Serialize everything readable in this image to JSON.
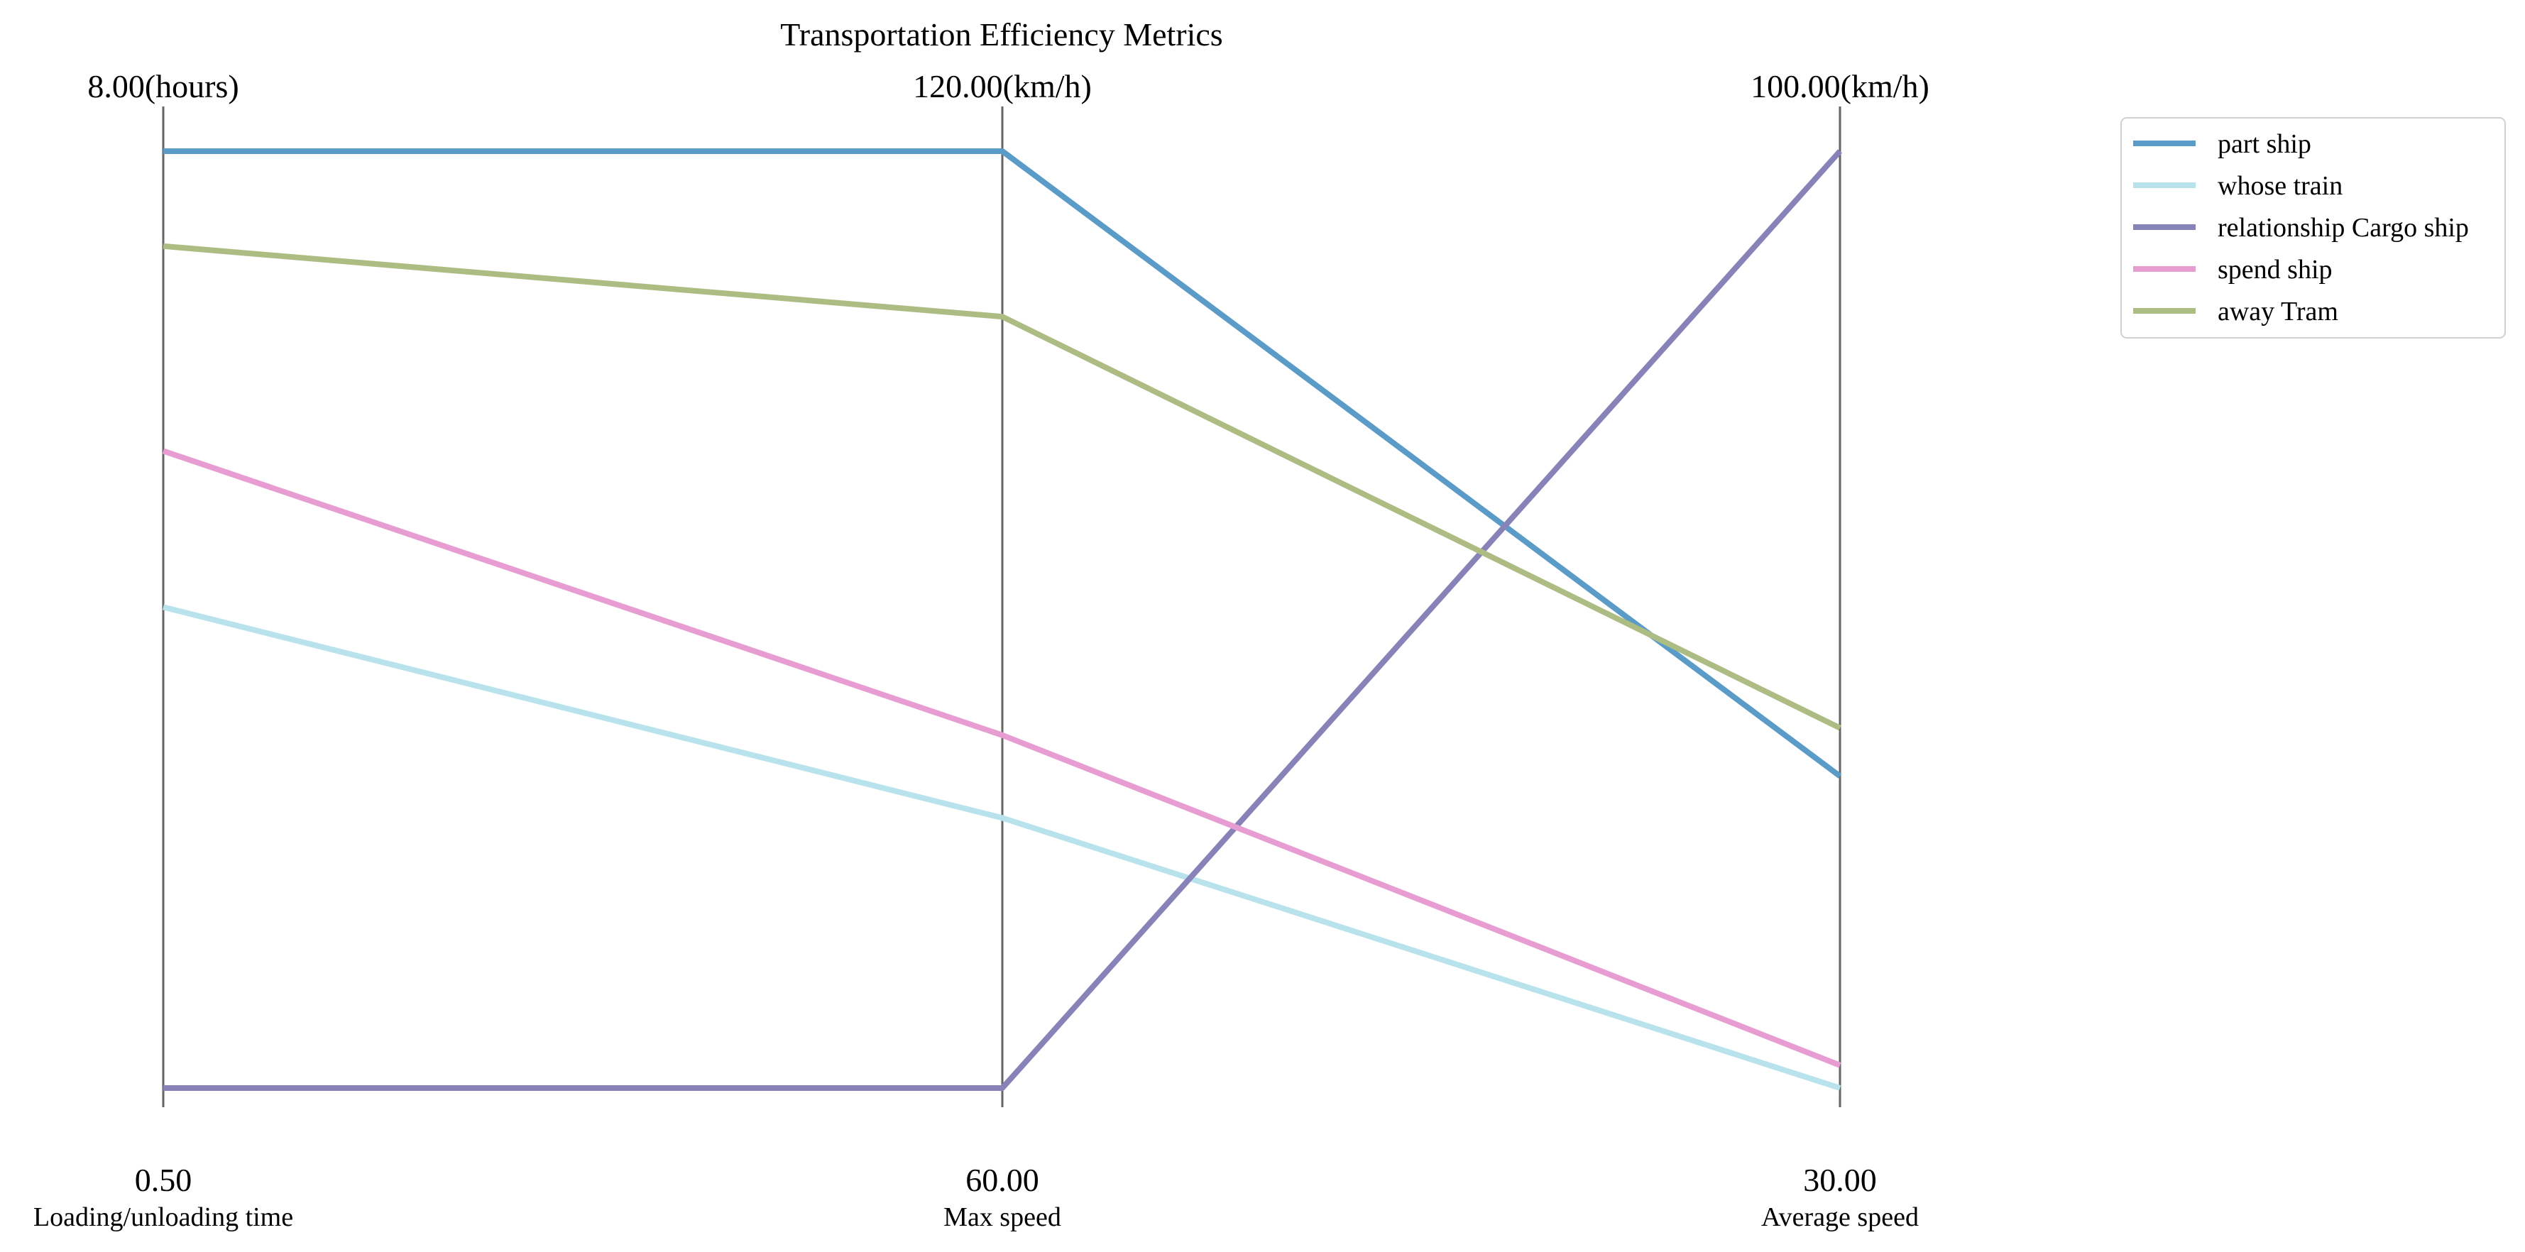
{
  "chart_data": {
    "type": "parallel-coordinates",
    "title": "Transportation Efficiency Metrics",
    "axes": [
      {
        "name": "Loading/unloading time",
        "min": 0.5,
        "max": 8.0,
        "min_label": "0.50",
        "max_label": "8.00(hours)"
      },
      {
        "name": "Max speed",
        "min": 60.0,
        "max": 120.0,
        "min_label": "60.00",
        "max_label": "120.00(km/h)"
      },
      {
        "name": "Average speed",
        "min": 30.0,
        "max": 100.0,
        "min_label": "30.00",
        "max_label": "100.00(km/h)"
      }
    ],
    "series": [
      {
        "name": "part ship",
        "color": "#5b9bc8",
        "values": [
          8.0,
          120.0,
          53.3
        ]
      },
      {
        "name": "whose train",
        "color": "#b9e3ec",
        "values": [
          4.35,
          77.3,
          30.0
        ]
      },
      {
        "name": "relationship Cargo ship",
        "color": "#8783b8",
        "values": [
          0.5,
          60.0,
          100.0
        ]
      },
      {
        "name": "spend ship",
        "color": "#e89dd2",
        "values": [
          5.6,
          82.6,
          31.7
        ]
      },
      {
        "name": "away Tram",
        "color": "#adbc83",
        "values": [
          7.24,
          109.4,
          56.9
        ]
      }
    ],
    "legend_position": "top-right",
    "grid": false
  }
}
